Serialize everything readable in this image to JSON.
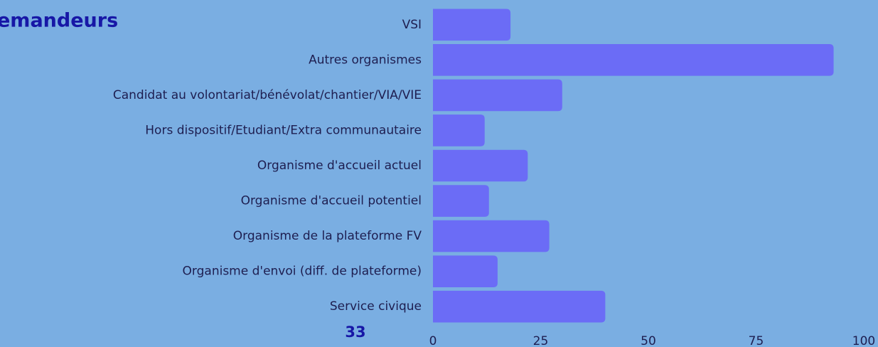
{
  "chart_data": {
    "type": "hbar",
    "title": "emandeurs",
    "annotation": "33",
    "categories": [
      "VSI",
      "Autres organismes",
      "Candidat au volontariat/bénévolat/chantier/VIA/VIE",
      "Hors dispositif/Etudiant/Extra communautaire",
      "Organisme d'accueil actuel",
      "Organisme d'accueil potentiel",
      "Organisme de la plateforme FV",
      "Organisme d'envoi (diff. de plateforme)",
      "Service civique"
    ],
    "values": [
      18,
      93,
      30,
      12,
      22,
      13,
      27,
      15,
      40
    ],
    "color": "#6b6cf6",
    "xlim": [
      0,
      100
    ],
    "xticks": [
      0,
      25,
      50,
      75,
      100
    ],
    "grid": false
  }
}
